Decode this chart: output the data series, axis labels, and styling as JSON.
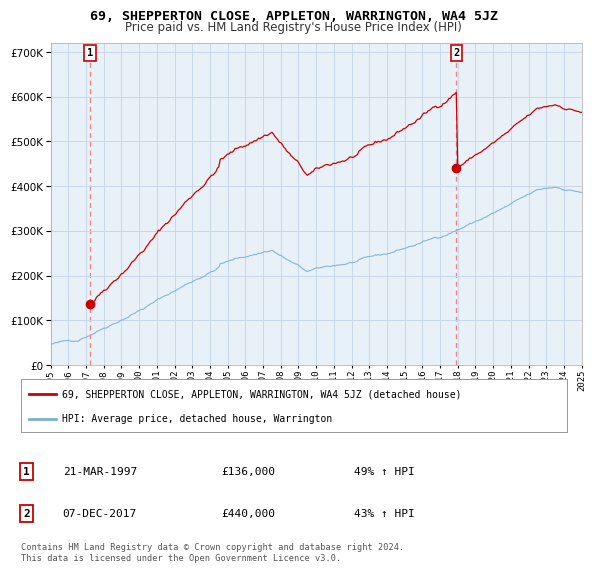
{
  "title1": "69, SHEPPERTON CLOSE, APPLETON, WARRINGTON, WA4 5JZ",
  "title2": "Price paid vs. HM Land Registry's House Price Index (HPI)",
  "ylim": [
    0,
    720000
  ],
  "yticks": [
    0,
    100000,
    200000,
    300000,
    400000,
    500000,
    600000,
    700000
  ],
  "ytick_labels": [
    "£0",
    "£100K",
    "£200K",
    "£300K",
    "£400K",
    "£500K",
    "£600K",
    "£700K"
  ],
  "x_start_year": 1995,
  "x_end_year": 2025,
  "sale1_date": 1997.22,
  "sale1_price": 136000,
  "sale2_date": 2017.93,
  "sale2_price": 440000,
  "legend_line1": "69, SHEPPERTON CLOSE, APPLETON, WARRINGTON, WA4 5JZ (detached house)",
  "legend_line2": "HPI: Average price, detached house, Warrington",
  "table_row1_num": "1",
  "table_row1_date": "21-MAR-1997",
  "table_row1_price": "£136,000",
  "table_row1_hpi": "49% ↑ HPI",
  "table_row2_num": "2",
  "table_row2_date": "07-DEC-2017",
  "table_row2_price": "£440,000",
  "table_row2_hpi": "43% ↑ HPI",
  "footer": "Contains HM Land Registry data © Crown copyright and database right 2024.\nThis data is licensed under the Open Government Licence v3.0.",
  "line_color_red": "#cc0000",
  "line_color_blue": "#7bafd4",
  "marker_color_red": "#cc0000",
  "vline_color": "#e88080",
  "bg_chart": "#e8f0f8",
  "bg_fig": "#ffffff",
  "grid_color": "#c8d8e8",
  "title1_fontsize": 9.5,
  "title2_fontsize": 8.5
}
